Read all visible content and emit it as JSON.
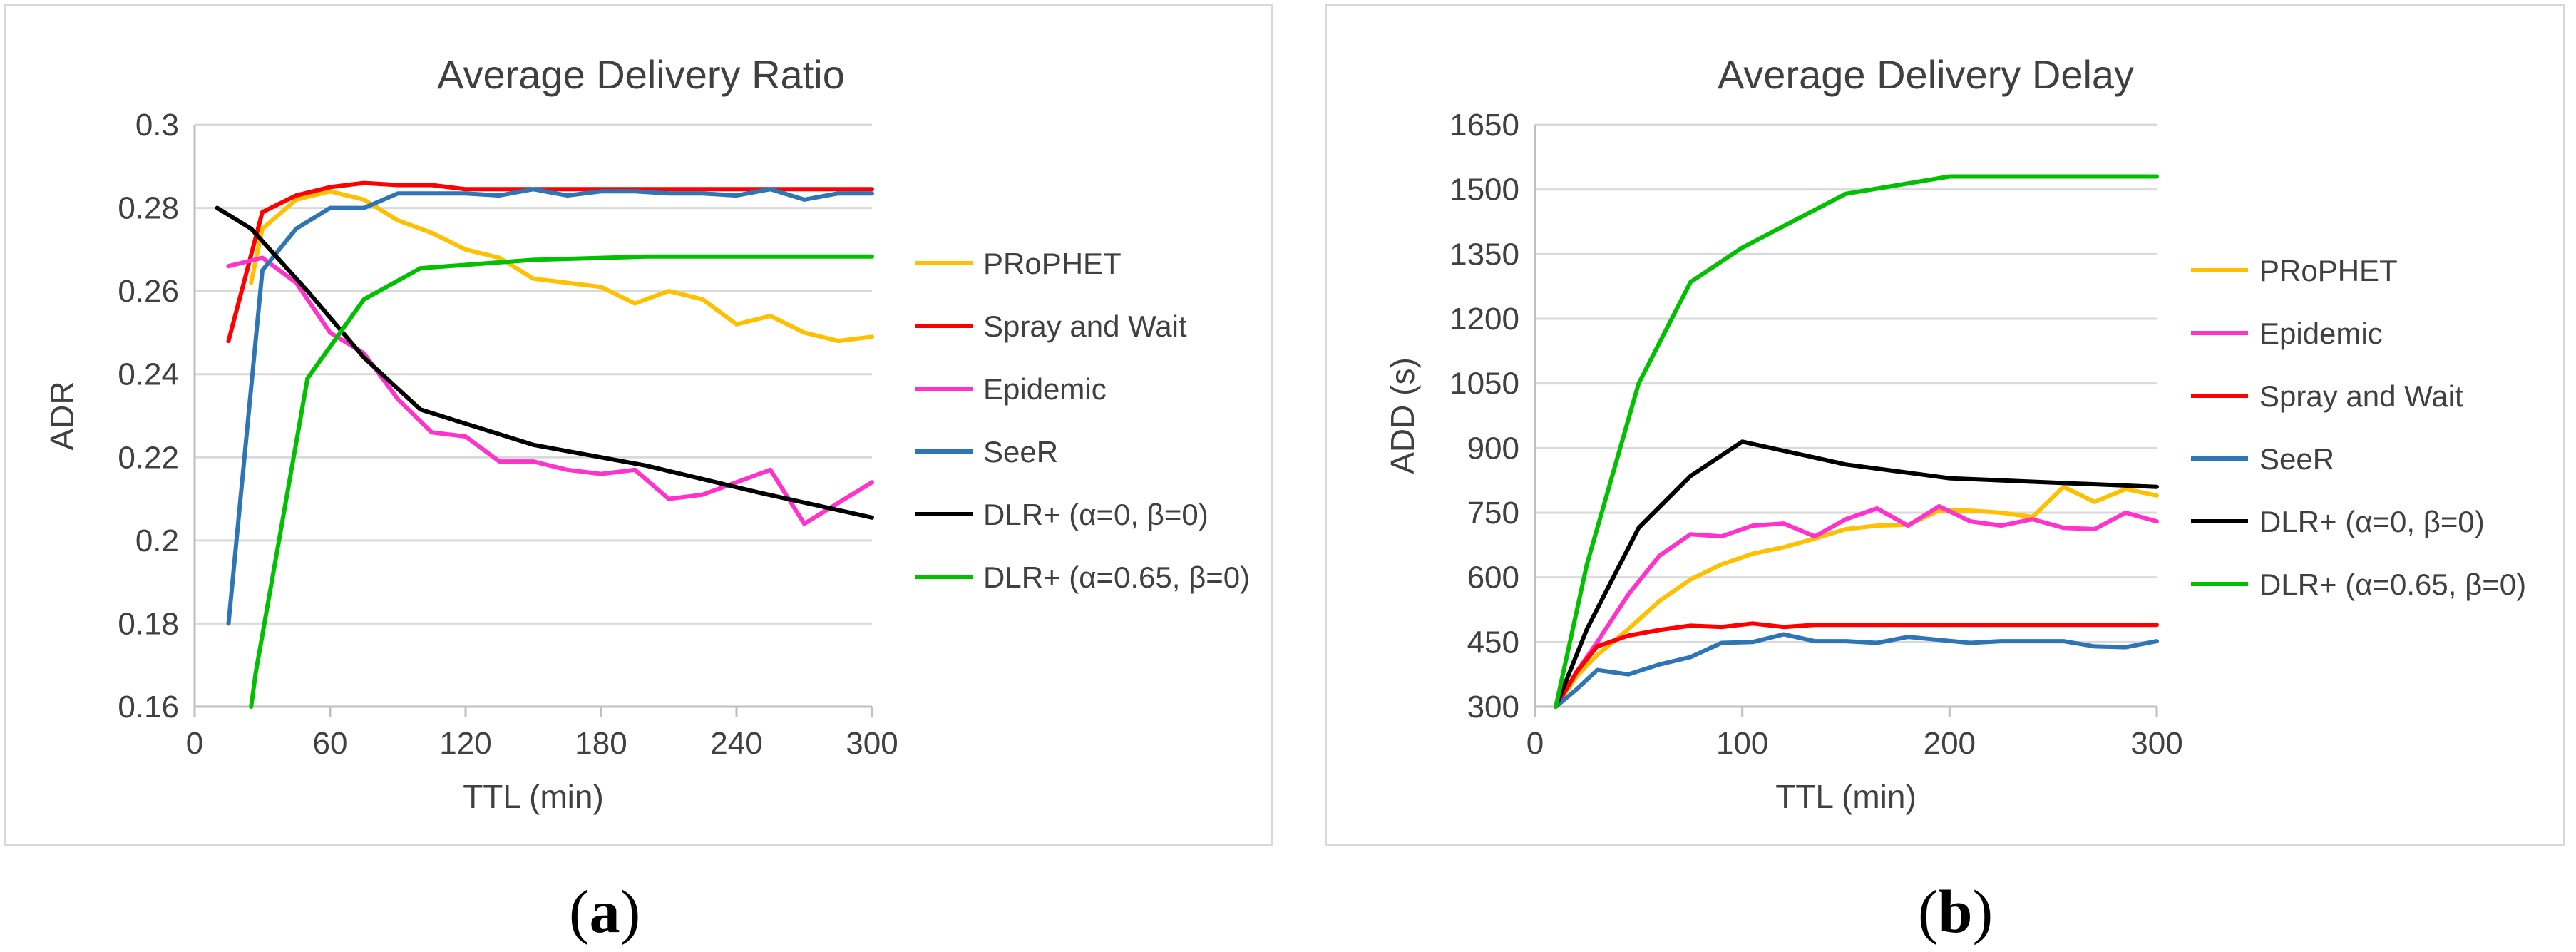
{
  "captions": {
    "a_open": "(",
    "a_letter": "a",
    "a_close": ")",
    "b_open": "(",
    "b_letter": "b",
    "b_close": ")"
  },
  "colors": {
    "prophet": "#FFC000",
    "spray": "#FF0000",
    "epidemic": "#FF33CC",
    "seer": "#2E75B6",
    "dlr0": "#000000",
    "dlr065": "#00C000"
  },
  "chart_data": [
    {
      "type": "line",
      "title": "Average Delivery Ratio",
      "xlabel": "TTL (min)",
      "ylabel": "ADR",
      "xlim": [
        0,
        300
      ],
      "ylim": [
        0.16,
        0.3
      ],
      "xticks": [
        0,
        60,
        120,
        180,
        240,
        300
      ],
      "yticks": [
        0.16,
        0.18,
        0.2,
        0.22,
        0.24,
        0.26,
        0.28,
        0.3
      ],
      "xtick_labels": [
        "0",
        "60",
        "120",
        "180",
        "240",
        "300"
      ],
      "ytick_labels": [
        "0.16",
        "0.18",
        "0.2",
        "0.22",
        "0.24",
        "0.26",
        "0.28",
        "0.3"
      ],
      "gridlines": "horizontal",
      "legend_position": "right",
      "series": [
        {
          "name": "PRoPHET",
          "color": "#FFC000",
          "x": [
            25,
            30,
            45,
            60,
            75,
            90,
            105,
            120,
            135,
            150,
            165,
            180,
            195,
            210,
            225,
            240,
            255,
            270,
            285,
            300
          ],
          "y": [
            0.262,
            0.275,
            0.282,
            0.284,
            0.282,
            0.277,
            0.274,
            0.27,
            0.268,
            0.263,
            0.262,
            0.261,
            0.257,
            0.26,
            0.258,
            0.252,
            0.254,
            0.25,
            0.248,
            0.249
          ]
        },
        {
          "name": "Spray and Wait",
          "color": "#FF0000",
          "x": [
            15,
            30,
            45,
            60,
            75,
            90,
            105,
            120,
            135,
            150,
            165,
            180,
            195,
            210,
            225,
            240,
            255,
            270,
            285,
            300
          ],
          "y": [
            0.248,
            0.279,
            0.283,
            0.285,
            0.286,
            0.2855,
            0.2855,
            0.2845,
            0.2845,
            0.2845,
            0.2845,
            0.2845,
            0.2845,
            0.2845,
            0.2845,
            0.2845,
            0.2845,
            0.2845,
            0.2845,
            0.2845
          ]
        },
        {
          "name": "Epidemic",
          "color": "#FF33CC",
          "x": [
            15,
            30,
            45,
            60,
            75,
            90,
            105,
            120,
            135,
            150,
            165,
            180,
            195,
            210,
            225,
            240,
            255,
            270,
            285,
            300
          ],
          "y": [
            0.266,
            0.268,
            0.262,
            0.25,
            0.245,
            0.234,
            0.226,
            0.225,
            0.219,
            0.219,
            0.217,
            0.216,
            0.217,
            0.21,
            0.211,
            0.214,
            0.217,
            0.204,
            0.209,
            0.214
          ]
        },
        {
          "name": "SeeR",
          "color": "#2E75B6",
          "x": [
            15,
            30,
            45,
            60,
            75,
            90,
            105,
            120,
            135,
            150,
            165,
            180,
            195,
            210,
            225,
            240,
            255,
            270,
            285,
            300
          ],
          "y": [
            0.18,
            0.265,
            0.275,
            0.28,
            0.28,
            0.2835,
            0.2835,
            0.2835,
            0.283,
            0.2845,
            0.283,
            0.284,
            0.284,
            0.2835,
            0.2835,
            0.283,
            0.2845,
            0.282,
            0.2835,
            0.2835
          ]
        },
        {
          "name": "DLR+ (α=0, β=0)",
          "color": "#000000",
          "x": [
            10,
            25,
            50,
            75,
            100,
            150,
            200,
            250,
            300
          ],
          "y": [
            0.28,
            0.275,
            0.26,
            0.244,
            0.2315,
            0.223,
            0.218,
            0.2115,
            0.2055
          ]
        },
        {
          "name": "DLR+ (α=0.65, β=0)",
          "color": "#00C000",
          "x": [
            25,
            27,
            50,
            75,
            100,
            150,
            200,
            250,
            300
          ],
          "y": [
            0.16,
            0.168,
            0.239,
            0.258,
            0.2655,
            0.2675,
            0.2683,
            0.2683,
            0.2683
          ]
        }
      ]
    },
    {
      "type": "line",
      "title": "Average Delivery Delay",
      "xlabel": "TTL (min)",
      "ylabel": "ADD (s)",
      "xlim": [
        0,
        300
      ],
      "ylim": [
        300,
        1650
      ],
      "xticks": [
        0,
        100,
        200,
        300
      ],
      "yticks": [
        300,
        450,
        600,
        750,
        900,
        1050,
        1200,
        1350,
        1500,
        1650
      ],
      "xtick_labels": [
        "0",
        "100",
        "200",
        "300"
      ],
      "ytick_labels": [
        "300",
        "450",
        "600",
        "750",
        "900",
        "1050",
        "1200",
        "1350",
        "1500",
        "1650"
      ],
      "gridlines": "horizontal",
      "legend_position": "right",
      "series": [
        {
          "name": "PRoPHET",
          "color": "#FFC000",
          "x": [
            10,
            20,
            30,
            45,
            60,
            75,
            90,
            105,
            120,
            135,
            150,
            165,
            180,
            195,
            210,
            225,
            240,
            255,
            270,
            285,
            300
          ],
          "y": [
            300,
            370,
            420,
            480,
            545,
            595,
            630,
            655,
            670,
            690,
            712,
            720,
            722,
            755,
            755,
            750,
            740,
            810,
            775,
            805,
            790
          ]
        },
        {
          "name": "Epidemic",
          "color": "#FF33CC",
          "x": [
            10,
            20,
            30,
            45,
            60,
            75,
            90,
            105,
            120,
            135,
            150,
            165,
            180,
            195,
            210,
            225,
            240,
            255,
            270,
            285,
            300
          ],
          "y": [
            300,
            380,
            450,
            560,
            650,
            700,
            695,
            720,
            725,
            695,
            735,
            760,
            720,
            765,
            730,
            720,
            735,
            715,
            712,
            750,
            730
          ]
        },
        {
          "name": "Spray and Wait",
          "color": "#FF0000",
          "x": [
            10,
            20,
            30,
            45,
            60,
            75,
            90,
            105,
            120,
            135,
            150,
            180,
            210,
            240,
            270,
            300
          ],
          "y": [
            300,
            380,
            440,
            465,
            478,
            488,
            485,
            493,
            485,
            490,
            490,
            490,
            490,
            490,
            490,
            490
          ]
        },
        {
          "name": "SeeR",
          "color": "#2E75B6",
          "x": [
            10,
            20,
            30,
            45,
            60,
            75,
            90,
            105,
            120,
            135,
            150,
            165,
            180,
            195,
            210,
            225,
            240,
            255,
            270,
            285,
            300
          ],
          "y": [
            300,
            340,
            385,
            375,
            398,
            415,
            448,
            450,
            468,
            452,
            452,
            448,
            462,
            455,
            448,
            452,
            452,
            452,
            440,
            438,
            452
          ]
        },
        {
          "name": "DLR+ (α=0, β=0)",
          "color": "#000000",
          "x": [
            10,
            25,
            50,
            75,
            100,
            150,
            200,
            250,
            300
          ],
          "y": [
            300,
            480,
            715,
            835,
            915,
            862,
            830,
            820,
            810
          ]
        },
        {
          "name": "DLR+ (α=0.65, β=0)",
          "color": "#00C000",
          "x": [
            10,
            25,
            50,
            75,
            100,
            150,
            200,
            250,
            300
          ],
          "y": [
            300,
            630,
            1050,
            1285,
            1365,
            1490,
            1530,
            1530,
            1530
          ]
        }
      ]
    }
  ]
}
